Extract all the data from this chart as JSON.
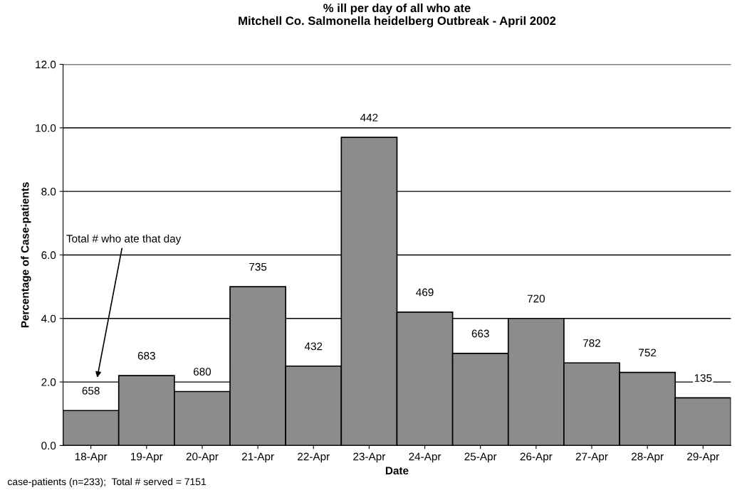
{
  "chart_data": {
    "type": "bar",
    "title": "% ill per day of all who ate\nMitchell Co. Salmonella heidelberg Outbreak - April 2002",
    "xlabel": "Date",
    "ylabel": "Percentage of Case-patients",
    "categories": [
      "18-Apr",
      "19-Apr",
      "20-Apr",
      "21-Apr",
      "22-Apr",
      "23-Apr",
      "24-Apr",
      "25-Apr",
      "26-Apr",
      "27-Apr",
      "28-Apr",
      "29-Apr"
    ],
    "values": [
      1.1,
      2.2,
      1.7,
      5.0,
      2.5,
      9.7,
      4.2,
      2.9,
      4.0,
      2.6,
      2.3,
      1.5
    ],
    "color": "#8c8c8c",
    "ylim": [
      0,
      12
    ],
    "yticks": [
      {
        "value": 0,
        "label": "0.0"
      },
      {
        "value": 2,
        "label": "2.0"
      },
      {
        "value": 4,
        "label": "4.0"
      },
      {
        "value": 6,
        "label": "6.0"
      },
      {
        "value": 8,
        "label": "8.0"
      },
      {
        "value": 10,
        "label": "10.0"
      },
      {
        "value": 12,
        "label": "12.0"
      }
    ],
    "grid": "y",
    "annotations": [
      "Total # who ate that day",
      {
        "text": "658",
        "x": "18-Apr",
        "y": 1.1
      },
      {
        "text": "683",
        "x": "19-Apr",
        "y": 2.2
      },
      {
        "text": "680",
        "x": "20-Apr",
        "y": 1.7
      },
      {
        "text": "735",
        "x": "21-Apr",
        "y": 5.0
      },
      {
        "text": "432",
        "x": "22-Apr",
        "y": 2.5
      },
      {
        "text": "442",
        "x": "23-Apr",
        "y": 9.7
      },
      {
        "text": "469",
        "x": "24-Apr",
        "y": 4.2
      },
      {
        "text": "663",
        "x": "25-Apr",
        "y": 2.9
      },
      {
        "text": "720",
        "x": "26-Apr",
        "y": 4.0
      },
      {
        "text": "782",
        "x": "27-Apr",
        "y": 2.6
      },
      {
        "text": "752",
        "x": "28-Apr",
        "y": 2.3
      },
      {
        "text": "135",
        "x": "29-Apr",
        "y": 1.5
      },
      "case-patients (n=233);  Total # served = 7151"
    ]
  }
}
